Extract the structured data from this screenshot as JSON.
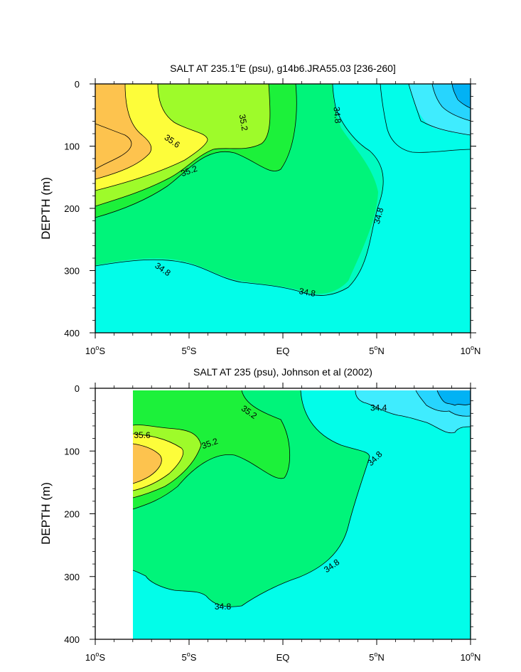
{
  "chart_data": [
    {
      "type": "contour",
      "title": "SALT AT 235.1°E (psu), g14b6.JRA55.03 [236-260]",
      "title_parts": [
        "SALT AT 235.1",
        "o",
        "E (psu), g14b6.JRA55.03 [236-260]"
      ],
      "ylabel": "DEPTH (m)",
      "xlim": [
        -10,
        10
      ],
      "ylim": [
        0,
        400
      ],
      "y_inverted": true,
      "x_ticks": [
        -10,
        -5,
        0,
        5,
        10
      ],
      "x_tick_labels": [
        [
          "10",
          "o",
          "S"
        ],
        [
          "5",
          "o",
          "S"
        ],
        [
          "EQ"
        ],
        [
          "5",
          "o",
          "N"
        ],
        [
          "10",
          "o",
          "N"
        ]
      ],
      "y_ticks": [
        0,
        100,
        200,
        300,
        400
      ],
      "y_tick_labels": [
        "0",
        "100",
        "200",
        "300",
        "400"
      ],
      "data_xmin": -10,
      "contour_labels": [
        {
          "text": "35.6",
          "x": -5.9,
          "y": 92,
          "angle": 35
        },
        {
          "text": "35.2",
          "x": -2.1,
          "y": 62,
          "angle": 80
        },
        {
          "text": "34.8",
          "x": 2.9,
          "y": 50,
          "angle": 85
        },
        {
          "text": "35.2",
          "x": -5.0,
          "y": 140,
          "angle": -20
        },
        {
          "text": "34.8",
          "x": 5.1,
          "y": 212,
          "angle": -75
        },
        {
          "text": "34.8",
          "x": -6.4,
          "y": 298,
          "angle": 35
        },
        {
          "text": "34.8",
          "x": 1.3,
          "y": 335,
          "angle": 10
        }
      ]
    },
    {
      "type": "contour",
      "title": "SALT AT 235 (psu), Johnson et al (2002)",
      "title_parts": [
        "SALT AT 235 (psu), Johnson et al (2002)"
      ],
      "ylabel": "DEPTH (m)",
      "xlim": [
        -10,
        10
      ],
      "ylim": [
        0,
        400
      ],
      "y_inverted": true,
      "x_ticks": [
        -10,
        -5,
        0,
        5,
        10
      ],
      "x_tick_labels": [
        [
          "10",
          "o",
          "S"
        ],
        [
          "5",
          "o",
          "S"
        ],
        [
          "EQ"
        ],
        [
          "5",
          "o",
          "N"
        ],
        [
          "10",
          "o",
          "N"
        ]
      ],
      "y_ticks": [
        0,
        100,
        200,
        300,
        400
      ],
      "y_tick_labels": [
        "0",
        "100",
        "200",
        "300",
        "400"
      ],
      "data_xmin": -8,
      "contour_labels": [
        {
          "text": "35.6",
          "x": -7.5,
          "y": 75,
          "angle": 0
        },
        {
          "text": "35.2",
          "x": -1.8,
          "y": 38,
          "angle": 35
        },
        {
          "text": "35.2",
          "x": -3.9,
          "y": 88,
          "angle": -20
        },
        {
          "text": "34.4",
          "x": 5.1,
          "y": 31,
          "angle": 0
        },
        {
          "text": "34.8",
          "x": 4.9,
          "y": 112,
          "angle": -45
        },
        {
          "text": "34.8",
          "x": 2.6,
          "y": 283,
          "angle": -35
        },
        {
          "text": "34.8",
          "x": -3.2,
          "y": 348,
          "angle": 0
        }
      ]
    }
  ],
  "colors": {
    "s35_8": "#FDC34E",
    "s35_6": "#FDFD3A",
    "s35_4": "#9EFB2A",
    "s35_2": "#1CF13A",
    "s35_0": "#00F47A",
    "s34_8": "#00FBC0",
    "s34_6": "#02FDE9",
    "s34_4": "#3FECFE",
    "s34_2": "#27D5FE",
    "s34_0": "#02B2F4"
  }
}
